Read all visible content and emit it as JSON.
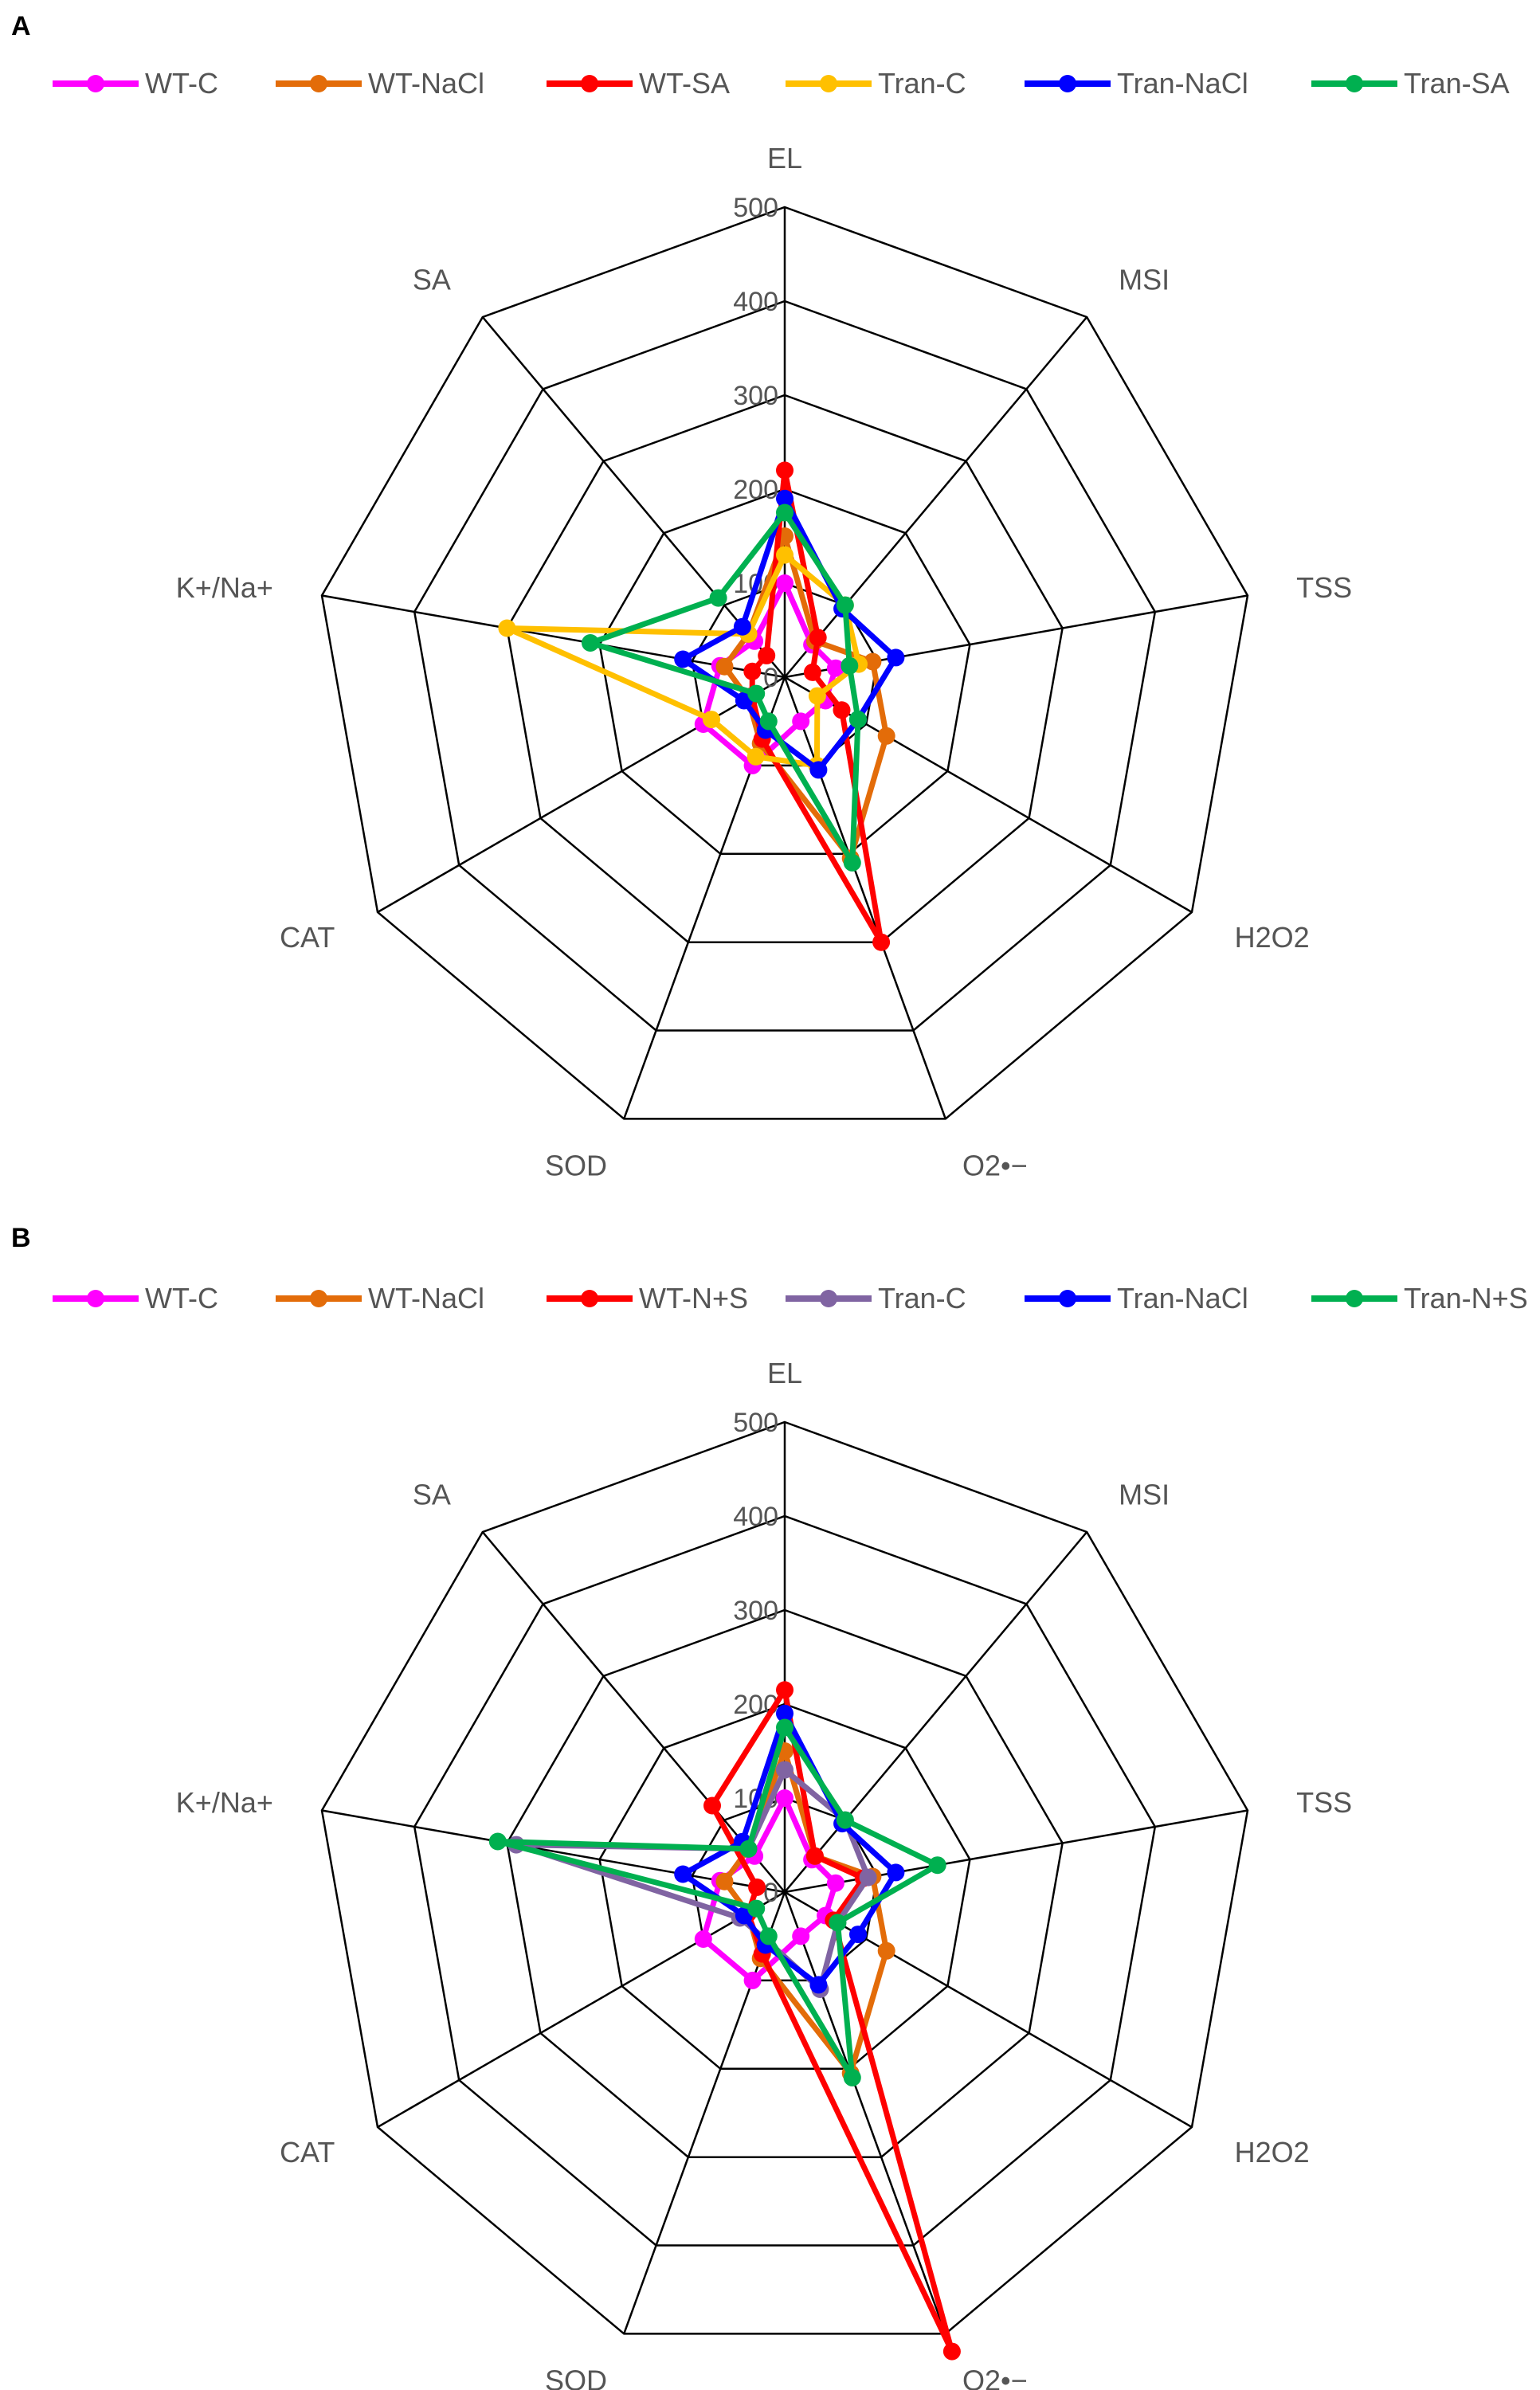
{
  "chart_data": [
    {
      "panel": "A",
      "type": "radar",
      "axes": [
        "EL",
        "MSI",
        "TSS",
        "H2O2",
        "O2•−",
        "SOD",
        "CAT",
        "K+/Na+",
        "SA"
      ],
      "rlim": [
        0,
        500
      ],
      "ticks": [
        "0",
        "100",
        "200",
        "300",
        "400",
        "500"
      ],
      "series": [
        {
          "name": "WT-C",
          "color": "#ff00ff",
          "values": [
            100,
            45,
            55,
            50,
            50,
            100,
            100,
            70,
            50
          ]
        },
        {
          "name": "WT-NaCl",
          "color": "#e36c09",
          "values": [
            150,
            50,
            95,
            125,
            205,
            75,
            45,
            65,
            60
          ]
        },
        {
          "name": "WT-SA",
          "color": "#ff0000",
          "values": [
            220,
            55,
            30,
            70,
            300,
            70,
            40,
            35,
            30
          ]
        },
        {
          "name": "Tran-C",
          "color": "#ffc000",
          "values": [
            130,
            100,
            80,
            40,
            100,
            90,
            90,
            300,
            60
          ]
        },
        {
          "name": "Tran-NaCl",
          "color": "#0000ff",
          "values": [
            190,
            95,
            120,
            90,
            105,
            60,
            50,
            110,
            70
          ]
        },
        {
          "name": "Tran-SA",
          "color": "#00b050",
          "values": [
            175,
            100,
            70,
            90,
            210,
            50,
            35,
            210,
            110
          ]
        }
      ]
    },
    {
      "panel": "B",
      "type": "radar",
      "axes": [
        "EL",
        "MSI",
        "TSS",
        "H2O2",
        "O2•−",
        "SOD",
        "CAT",
        "K+/Na+",
        "SA"
      ],
      "rlim": [
        0,
        500
      ],
      "ticks": [
        "0",
        "100",
        "200",
        "300",
        "400",
        "500"
      ],
      "series": [
        {
          "name": "WT-C",
          "color": "#ff00ff",
          "values": [
            100,
            45,
            55,
            50,
            50,
            100,
            100,
            70,
            50
          ]
        },
        {
          "name": "WT-NaCl",
          "color": "#e36c09",
          "values": [
            150,
            50,
            95,
            125,
            205,
            75,
            45,
            65,
            60
          ]
        },
        {
          "name": "WT-N+S",
          "color": "#ff0000",
          "values": [
            215,
            50,
            85,
            60,
            520,
            70,
            45,
            30,
            120
          ]
        },
        {
          "name": "Tran-C",
          "color": "#8064a2",
          "values": [
            130,
            100,
            90,
            65,
            110,
            55,
            55,
            290,
            60
          ]
        },
        {
          "name": "Tran-NaCl",
          "color": "#0000ff",
          "values": [
            190,
            95,
            120,
            90,
            105,
            60,
            50,
            110,
            70
          ]
        },
        {
          "name": "Tran-N+S",
          "color": "#00b050",
          "values": [
            175,
            100,
            165,
            65,
            210,
            50,
            35,
            310,
            60
          ]
        }
      ]
    }
  ]
}
